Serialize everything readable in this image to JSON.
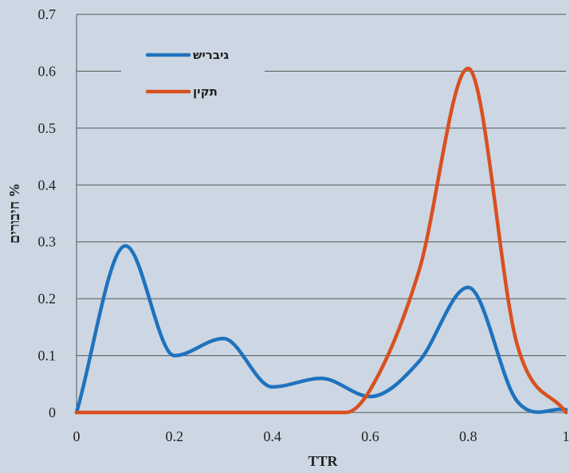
{
  "chart_data": {
    "type": "line",
    "xlabel": "TTR",
    "ylabel": "% חיבורים",
    "xlim": [
      0,
      1
    ],
    "ylim": [
      0,
      0.7
    ],
    "x_ticks": [
      "0",
      "0.2",
      "0.4",
      "0.6",
      "0.8",
      "1"
    ],
    "y_ticks": [
      "0",
      "0.1",
      "0.2",
      "0.3",
      "0.4",
      "0.5",
      "0.6",
      "0.7"
    ],
    "grid": "horizontal",
    "legend_position": "top-left",
    "series": [
      {
        "name": "גיבריש",
        "color": "#1f72bd",
        "x": [
          0,
          0.1,
          0.2,
          0.3,
          0.4,
          0.5,
          0.6,
          0.7,
          0.8,
          0.9,
          1.0
        ],
        "y": [
          0,
          0.293,
          0.1,
          0.13,
          0.045,
          0.06,
          0.028,
          0.09,
          0.22,
          0.02,
          0.005
        ]
      },
      {
        "name": "תקין",
        "color": "#d9501f",
        "x": [
          0,
          0.1,
          0.2,
          0.3,
          0.4,
          0.5,
          0.55,
          0.6,
          0.7,
          0.8,
          0.9,
          1.0
        ],
        "y": [
          0,
          0,
          0,
          0,
          0,
          0,
          0,
          0.04,
          0.25,
          0.605,
          0.12,
          0
        ]
      }
    ]
  }
}
